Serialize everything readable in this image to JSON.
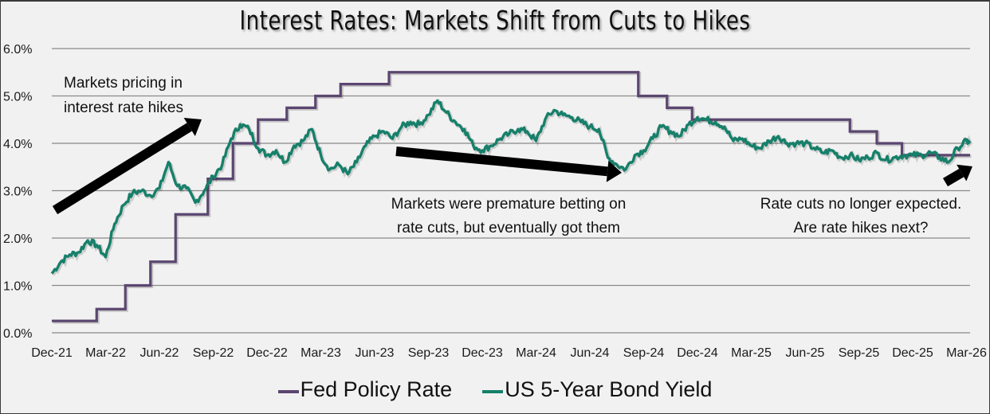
{
  "chart_data": {
    "type": "line",
    "title": "Interest Rates: Markets Shift from Cuts to Hikes",
    "xlabel": "",
    "ylabel": "",
    "x_unit": "months since Dec-21",
    "xlim": [
      0,
      51.2
    ],
    "ylim": [
      0,
      6
    ],
    "grid": true,
    "y_ticks": [
      "0.0%",
      "1.0%",
      "2.0%",
      "3.0%",
      "4.0%",
      "5.0%",
      "6.0%"
    ],
    "y_tick_values": [
      0,
      1,
      2,
      3,
      4,
      5,
      6
    ],
    "x_ticks": [
      "Dec-21",
      "Mar-22",
      "Jun-22",
      "Sep-22",
      "Dec-22",
      "Mar-23",
      "Jun-23",
      "Sep-23",
      "Dec-23",
      "Mar-24",
      "Jun-24",
      "Sep-24",
      "Dec-24",
      "Mar-25",
      "Jun-25",
      "Sep-25",
      "Dec-25",
      "Mar-26"
    ],
    "x_tick_values": [
      0,
      3,
      6,
      9,
      12,
      15,
      18,
      21,
      24,
      27,
      30,
      33,
      36,
      39,
      42,
      45,
      48,
      51
    ],
    "legend_position": "bottom-center",
    "series": [
      {
        "name": "Fed Policy Rate",
        "color": "#5b4670",
        "style": "step",
        "steps": [
          {
            "from": 0,
            "to": 2.5,
            "value": 0.25
          },
          {
            "from": 2.5,
            "to": 4.1,
            "value": 0.5
          },
          {
            "from": 4.1,
            "to": 5.5,
            "value": 1.0
          },
          {
            "from": 5.5,
            "to": 6.9,
            "value": 1.5
          },
          {
            "from": 6.9,
            "to": 8.7,
            "value": 2.5
          },
          {
            "from": 8.7,
            "to": 10.1,
            "value": 3.25
          },
          {
            "from": 10.1,
            "to": 11.5,
            "value": 4.0
          },
          {
            "from": 11.5,
            "to": 13.1,
            "value": 4.5
          },
          {
            "from": 13.1,
            "to": 14.7,
            "value": 4.75
          },
          {
            "from": 14.7,
            "to": 16.1,
            "value": 5.0
          },
          {
            "from": 16.1,
            "to": 18.8,
            "value": 5.25
          },
          {
            "from": 18.8,
            "to": 32.7,
            "value": 5.5
          },
          {
            "from": 32.7,
            "to": 34.3,
            "value": 5.0
          },
          {
            "from": 34.3,
            "to": 35.7,
            "value": 4.75
          },
          {
            "from": 35.7,
            "to": 44.5,
            "value": 4.5
          },
          {
            "from": 44.5,
            "to": 46.0,
            "value": 4.25
          },
          {
            "from": 46.0,
            "to": 47.4,
            "value": 4.0
          },
          {
            "from": 47.4,
            "to": 51.2,
            "value": 3.75
          }
        ]
      },
      {
        "name": "US 5-Year Bond Yield",
        "color": "#16806a",
        "style": "line",
        "x": [
          0,
          0.5,
          1,
          1.5,
          2,
          2.5,
          3,
          3.5,
          4,
          4.5,
          5,
          5.5,
          6,
          6.5,
          7,
          7.5,
          8,
          8.5,
          9,
          9.5,
          10,
          10.5,
          11,
          11.5,
          12,
          12.5,
          13,
          13.5,
          14,
          14.5,
          15,
          15.5,
          16,
          16.5,
          17,
          17.5,
          18,
          18.5,
          19,
          19.5,
          20,
          20.5,
          21,
          21.5,
          22,
          22.5,
          23,
          23.5,
          24,
          24.5,
          25,
          25.5,
          26,
          26.5,
          27,
          27.5,
          28,
          28.5,
          29,
          29.5,
          30,
          30.5,
          31,
          31.5,
          32,
          32.5,
          33,
          33.5,
          34,
          34.5,
          35,
          35.5,
          36,
          36.5,
          37,
          37.5,
          38,
          38.5,
          39,
          39.5,
          40,
          40.5,
          41,
          41.5,
          42,
          42.5,
          43,
          43.5,
          44,
          44.5,
          45,
          45.5,
          46,
          46.5,
          47,
          47.5,
          48,
          48.5,
          49,
          49.5,
          50,
          50.5,
          51,
          51.2
        ],
        "values": [
          1.25,
          1.5,
          1.65,
          1.7,
          1.95,
          1.85,
          1.6,
          2.3,
          2.7,
          2.95,
          3.0,
          2.9,
          3.05,
          3.6,
          3.1,
          3.05,
          2.75,
          3.0,
          3.3,
          3.55,
          4.1,
          4.4,
          4.3,
          3.9,
          3.75,
          3.85,
          3.6,
          3.95,
          4.05,
          4.3,
          3.75,
          3.45,
          3.55,
          3.35,
          3.6,
          3.95,
          4.15,
          4.25,
          4.1,
          4.35,
          4.45,
          4.4,
          4.6,
          4.9,
          4.65,
          4.45,
          4.3,
          3.95,
          3.85,
          3.95,
          4.1,
          4.2,
          4.3,
          4.25,
          4.05,
          4.5,
          4.7,
          4.6,
          4.55,
          4.45,
          4.35,
          4.3,
          3.7,
          3.55,
          3.45,
          3.75,
          3.85,
          4.1,
          4.35,
          4.25,
          4.15,
          4.4,
          4.55,
          4.5,
          4.45,
          4.35,
          4.05,
          4.1,
          3.95,
          3.9,
          4.05,
          4.15,
          4.0,
          4.0,
          4.0,
          3.9,
          3.8,
          3.85,
          3.7,
          3.75,
          3.65,
          3.7,
          3.8,
          3.65,
          3.7,
          3.75,
          3.75,
          3.75,
          3.8,
          3.7,
          3.6,
          3.9,
          4.05,
          4.0
        ]
      }
    ],
    "annotations": [
      {
        "lines": [
          "Markets pricing in",
          "interest rate hikes"
        ],
        "arrow": "up-right"
      },
      {
        "lines": [
          "Markets were premature betting on",
          "rate cuts, but eventually got them"
        ],
        "arrow": "down-right"
      },
      {
        "lines": [
          "Rate cuts no longer expected.",
          "Are rate hikes next?"
        ],
        "arrow": "up-right"
      }
    ]
  }
}
